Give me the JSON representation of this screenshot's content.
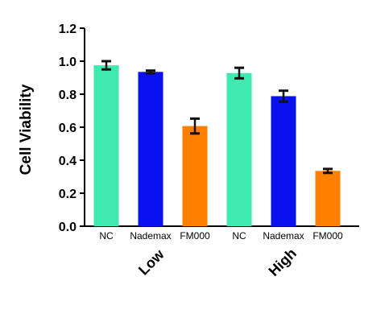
{
  "chart_data": {
    "type": "bar",
    "ylabel": "Cell Viability",
    "ylim": [
      0,
      1.2
    ],
    "yticks": [
      "0.0",
      "0.2",
      "0.4",
      "0.6",
      "0.8",
      "1.0",
      "1.2"
    ],
    "grid": false,
    "groups": [
      {
        "name": "Low",
        "categories": [
          "NC",
          "Nademax",
          "FM000"
        ],
        "values": [
          0.975,
          0.935,
          0.607
        ],
        "errors": [
          0.025,
          0.008,
          0.045
        ]
      },
      {
        "name": "High",
        "categories": [
          "NC",
          "Nademax",
          "FM000"
        ],
        "values": [
          0.928,
          0.788,
          0.335
        ],
        "errors": [
          0.032,
          0.033,
          0.012
        ]
      }
    ],
    "colors": {
      "NC": "#3eeab0",
      "Nademax": "#0a10ee",
      "FM000": "#ff8000"
    }
  }
}
